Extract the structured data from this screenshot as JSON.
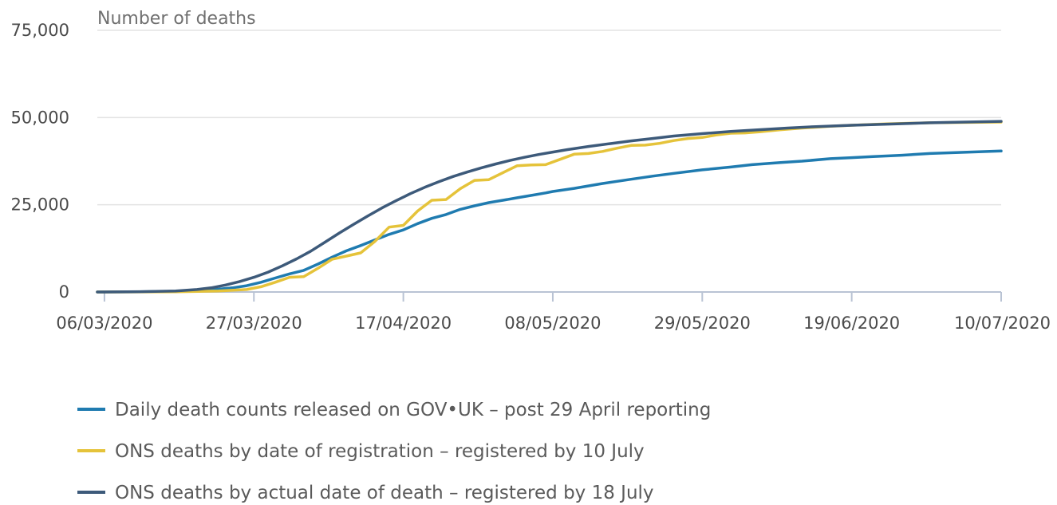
{
  "chart_data": {
    "type": "line",
    "ylabel": "Number of deaths",
    "ylim": [
      0,
      75000
    ],
    "yticks": [
      {
        "value": 0,
        "label": "0"
      },
      {
        "value": 25000,
        "label": "25,000"
      },
      {
        "value": 50000,
        "label": "50,000"
      },
      {
        "value": 75000,
        "label": "75,000"
      }
    ],
    "xticks": [
      {
        "day": 0,
        "label": "06/03/2020"
      },
      {
        "day": 21,
        "label": "27/03/2020"
      },
      {
        "day": 42,
        "label": "17/04/2020"
      },
      {
        "day": 63,
        "label": "08/05/2020"
      },
      {
        "day": 84,
        "label": "29/05/2020"
      },
      {
        "day": 105,
        "label": "19/06/2020"
      },
      {
        "day": 126,
        "label": "10/07/2020"
      }
    ],
    "xlim": [
      -1,
      126
    ],
    "grid": "horizontal",
    "legend_position": "bottom",
    "series": [
      {
        "name": "Daily death counts released on GOV•UK – post 29 April reporting",
        "color": "#1f7bb0",
        "x": [
          -1,
          5,
          10,
          14,
          16,
          18,
          20,
          22,
          24,
          26,
          28,
          30,
          32,
          34,
          36,
          38,
          40,
          42,
          44,
          46,
          48,
          50,
          52,
          54,
          56,
          58,
          60,
          62,
          63,
          66,
          70,
          74,
          77,
          80,
          84,
          88,
          91,
          95,
          98,
          102,
          105,
          108,
          112,
          116,
          120,
          126
        ],
        "y": [
          0,
          50,
          200,
          500,
          800,
          1200,
          1800,
          2800,
          4000,
          5200,
          6200,
          8000,
          10000,
          11800,
          13300,
          14900,
          16500,
          17800,
          19600,
          21100,
          22200,
          23700,
          24700,
          25600,
          26300,
          27000,
          27700,
          28400,
          28800,
          29700,
          31100,
          32300,
          33200,
          34000,
          35000,
          35800,
          36500,
          37100,
          37500,
          38200,
          38500,
          38800,
          39200,
          39700,
          40000,
          40400
        ]
      },
      {
        "name": "ONS deaths by date of registration – registered by 10 July",
        "color": "#e5c33a",
        "x": [
          -1,
          10,
          16,
          20,
          22,
          24,
          26,
          28,
          30,
          32,
          34,
          36,
          38,
          40,
          42,
          44,
          46,
          48,
          50,
          52,
          54,
          56,
          58,
          60,
          62,
          64,
          66,
          68,
          70,
          72,
          74,
          76,
          78,
          80,
          82,
          84,
          86,
          88,
          90,
          92,
          95,
          98,
          102,
          105,
          110,
          116,
          126
        ],
        "y": [
          0,
          50,
          300,
          700,
          1500,
          2800,
          4200,
          4400,
          6800,
          9400,
          10300,
          11200,
          14500,
          18600,
          19100,
          23200,
          26300,
          26500,
          29600,
          32000,
          32200,
          34200,
          36200,
          36400,
          36500,
          38000,
          39500,
          39700,
          40300,
          41200,
          42000,
          42100,
          42600,
          43400,
          44000,
          44300,
          45000,
          45500,
          45600,
          45900,
          46500,
          47000,
          47500,
          47800,
          48200,
          48500,
          48700
        ]
      },
      {
        "name": "ONS deaths by actual date of death – registered by 18 July",
        "color": "#3d5a7a",
        "x": [
          -1,
          5,
          10,
          13,
          15,
          17,
          19,
          21,
          23,
          25,
          27,
          29,
          31,
          33,
          35,
          37,
          39,
          41,
          43,
          45,
          47,
          49,
          51,
          53,
          55,
          57,
          59,
          61,
          63,
          65,
          68,
          71,
          74,
          77,
          80,
          84,
          88,
          92,
          96,
          100,
          105,
          110,
          116,
          121,
          126
        ],
        "y": [
          0,
          100,
          300,
          700,
          1200,
          2000,
          3000,
          4200,
          5700,
          7500,
          9500,
          11700,
          14300,
          16900,
          19400,
          21800,
          24100,
          26200,
          28200,
          30000,
          31600,
          33100,
          34400,
          35600,
          36700,
          37700,
          38600,
          39400,
          40100,
          40800,
          41700,
          42500,
          43300,
          44000,
          44700,
          45400,
          46000,
          46500,
          47000,
          47400,
          47800,
          48100,
          48500,
          48700,
          48900
        ]
      }
    ]
  }
}
